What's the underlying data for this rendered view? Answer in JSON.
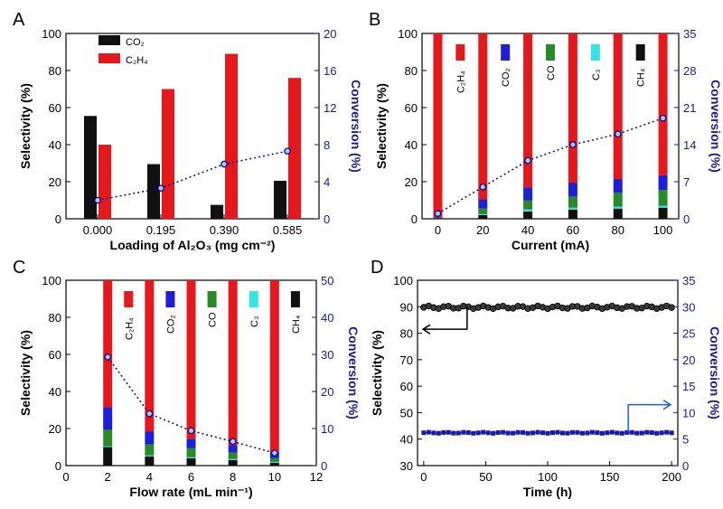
{
  "panels": {
    "A": {
      "letter": "A",
      "type": "bar",
      "xlabel": "Loading of Al₂O₃ (mg cm⁻²)",
      "ylabel": "Selectivity (%)",
      "ylabel_right": "Conversion (%)",
      "categories": [
        "0.000",
        "0.195",
        "0.390",
        "0.585"
      ],
      "ylim": [
        0,
        100
      ],
      "yticks": [
        "0",
        "20",
        "40",
        "60",
        "80",
        "100"
      ],
      "ylim_right": [
        0,
        20
      ],
      "yticks_right": [
        "0",
        "4",
        "8",
        "12",
        "16",
        "20"
      ],
      "legend": [
        {
          "label": "CO₂",
          "color": "#111111"
        },
        {
          "label": "C₂H₄",
          "color": "#e8171b"
        }
      ],
      "series": [
        {
          "name": "CO₂",
          "color": "#111111",
          "values": [
            55.5,
            29.5,
            7.5,
            20.5
          ]
        },
        {
          "name": "C₂H₄",
          "color": "#e8171b",
          "values": [
            40,
            70,
            89,
            76
          ]
        }
      ],
      "conversion": [
        2.0,
        3.3,
        5.9,
        7.3
      ]
    },
    "B": {
      "letter": "B",
      "type": "stacked-bar",
      "xlabel": "Current (mA)",
      "ylabel": "Selectivity (%)",
      "ylabel_right": "Conversion (%)",
      "x": [
        0,
        20,
        40,
        60,
        80,
        100
      ],
      "xticks": [
        "0",
        "20",
        "40",
        "60",
        "80",
        "100"
      ],
      "xlim": [
        -7,
        107
      ],
      "ylim": [
        0,
        100
      ],
      "yticks": [
        "0",
        "20",
        "40",
        "60",
        "80",
        "100"
      ],
      "ylim_right": [
        0,
        35
      ],
      "yticks_right": [
        "0",
        "7",
        "14",
        "21",
        "28",
        "35"
      ],
      "legend": [
        {
          "label": "C₂H₄",
          "color": "#e8171b"
        },
        {
          "label": "CO₂",
          "color": "#1f1fd9"
        },
        {
          "label": "CO",
          "color": "#2a8a2a"
        },
        {
          "label": "C₃",
          "color": "#35e5e5"
        },
        {
          "label": "CH₄",
          "color": "#111111"
        }
      ],
      "series": [
        {
          "name": "CH₄",
          "color": "#111111",
          "values": [
            0.3,
            2,
            4,
            5,
            5.5,
            6
          ]
        },
        {
          "name": "C₃",
          "color": "#35e5e5",
          "values": [
            0,
            0.5,
            1,
            1,
            1,
            1
          ]
        },
        {
          "name": "CO",
          "color": "#2a8a2a",
          "values": [
            0.3,
            3,
            5,
            6,
            7.5,
            8.5
          ]
        },
        {
          "name": "CO₂",
          "color": "#1f1fd9",
          "values": [
            0.4,
            5,
            7,
            7.5,
            7.5,
            8
          ]
        },
        {
          "name": "C₂H₄",
          "color": "#e8171b",
          "values": [
            99,
            89.5,
            83,
            80.5,
            78.5,
            76.5
          ]
        }
      ],
      "conversion": [
        1.0,
        6.0,
        11.0,
        14.0,
        16.0,
        19.0
      ]
    },
    "C": {
      "letter": "C",
      "type": "stacked-bar",
      "xlabel": "Flow rate (mL min⁻¹)",
      "ylabel": "Selectivity (%)",
      "ylabel_right": "Conversion (%)",
      "x": [
        2,
        4,
        6,
        8,
        10
      ],
      "xticks": [
        "0",
        "2",
        "4",
        "6",
        "8",
        "10",
        "12"
      ],
      "xlim": [
        0,
        12
      ],
      "ylim": [
        0,
        100
      ],
      "yticks": [
        "0",
        "20",
        "40",
        "60",
        "80",
        "100"
      ],
      "ylim_right": [
        0,
        50
      ],
      "yticks_right": [
        "0",
        "10",
        "20",
        "30",
        "40",
        "50"
      ],
      "legend": [
        {
          "label": "C₂H₄",
          "color": "#e8171b"
        },
        {
          "label": "CO₂",
          "color": "#1f1fd9"
        },
        {
          "label": "CO",
          "color": "#2a8a2a"
        },
        {
          "label": "C₃",
          "color": "#35e5e5"
        },
        {
          "label": "CH₄",
          "color": "#111111"
        }
      ],
      "series": [
        {
          "name": "CH₄",
          "color": "#111111",
          "values": [
            10,
            5,
            4,
            3,
            1.5
          ]
        },
        {
          "name": "C₃",
          "color": "#35e5e5",
          "values": [
            0.5,
            0.5,
            0.5,
            0.5,
            0.5
          ]
        },
        {
          "name": "CO",
          "color": "#2a8a2a",
          "values": [
            9,
            6,
            5,
            3.5,
            2
          ]
        },
        {
          "name": "CO₂",
          "color": "#1f1fd9",
          "values": [
            12,
            7,
            5,
            4,
            3
          ]
        },
        {
          "name": "C₂H₄",
          "color": "#e8171b",
          "values": [
            68.5,
            81.5,
            85.5,
            89,
            93
          ]
        }
      ],
      "conversion": [
        29.3,
        14.0,
        9.4,
        6.5,
        3.4
      ]
    },
    "D": {
      "letter": "D",
      "type": "scatter",
      "xlabel": "Time (h)",
      "ylabel": "Selectivity (%)",
      "ylabel_right": "Conversion (%)",
      "xlim": [
        -5,
        205
      ],
      "xticks": [
        "0",
        "50",
        "100",
        "150",
        "200"
      ],
      "ylim": [
        30,
        100
      ],
      "yticks": [
        "30",
        "40",
        "50",
        "60",
        "70",
        "80",
        "90",
        "100"
      ],
      "ylim_right": [
        0,
        35
      ],
      "yticks_right": [
        "0",
        "5",
        "10",
        "15",
        "20",
        "25",
        "30",
        "35"
      ],
      "selectivity": {
        "start": 0,
        "end": 200,
        "step": 4,
        "mean": 89.8
      },
      "conversion": {
        "start": 0,
        "end": 200,
        "step": 4,
        "mean": 6.2
      }
    }
  },
  "colors": {
    "conversion_line": "#0a0a80",
    "marker_fill": "#a9c8ff",
    "blue_axis": "#1a1a8c",
    "arrow_blue": "#1f5fd6"
  }
}
